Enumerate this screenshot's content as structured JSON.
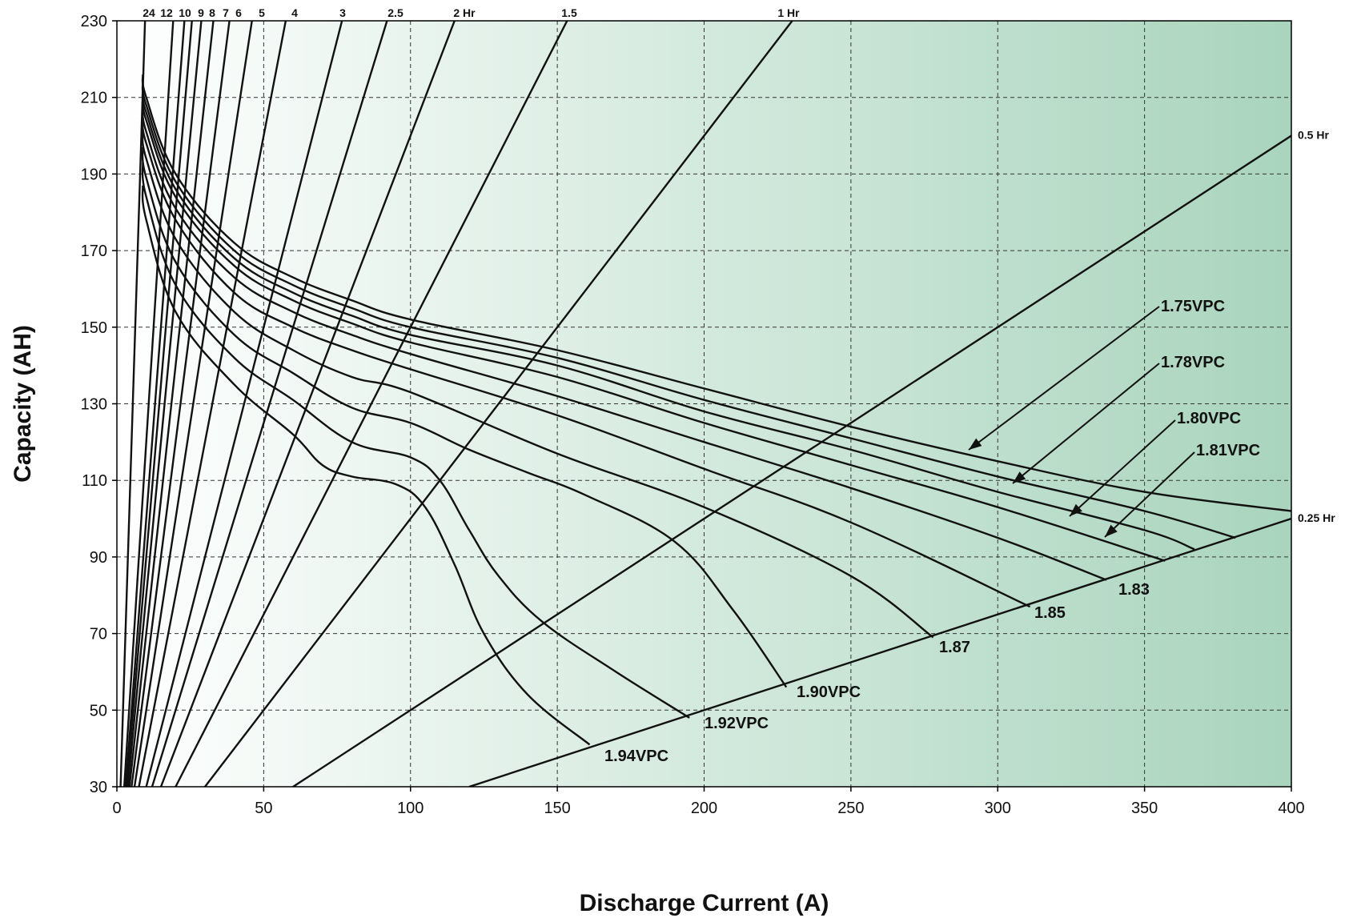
{
  "chart_data": {
    "type": "line",
    "xlabel": "Discharge Current (A)",
    "ylabel": "Capacity (AH)",
    "xlim": [
      0,
      400
    ],
    "ylim": [
      30,
      230
    ],
    "x_ticks": [
      0,
      50,
      100,
      150,
      200,
      250,
      300,
      350,
      400
    ],
    "y_ticks": [
      30,
      50,
      70,
      90,
      110,
      130,
      150,
      170,
      190,
      210,
      230
    ],
    "grid": true,
    "background_gradient": [
      "#ffffff",
      "#a9d4bd"
    ],
    "discharge_time_lines": [
      {
        "label": "24",
        "hours": 24
      },
      {
        "label": "12",
        "hours": 12
      },
      {
        "label": "10",
        "hours": 10
      },
      {
        "label": "9",
        "hours": 9
      },
      {
        "label": "8",
        "hours": 8
      },
      {
        "label": "7",
        "hours": 7
      },
      {
        "label": "6",
        "hours": 6
      },
      {
        "label": "5",
        "hours": 5
      },
      {
        "label": "4",
        "hours": 4
      },
      {
        "label": "3",
        "hours": 3
      },
      {
        "label": "2.5",
        "hours": 2.5
      },
      {
        "label": "2  Hr",
        "hours": 2
      },
      {
        "label": "1.5",
        "hours": 1.5
      },
      {
        "label": "1  Hr",
        "hours": 1
      },
      {
        "label": "0.5  Hr",
        "hours": 0.5
      },
      {
        "label": "0.25  Hr",
        "hours": 0.25
      }
    ],
    "series": [
      {
        "name": "1.75VPC",
        "points": [
          [
            8.8,
            216
          ],
          [
            10,
            210
          ],
          [
            20,
            190
          ],
          [
            40,
            172
          ],
          [
            60,
            163
          ],
          [
            80,
            157
          ],
          [
            100,
            152
          ],
          [
            150,
            144
          ],
          [
            200,
            134
          ],
          [
            250,
            124
          ],
          [
            300,
            115
          ],
          [
            350,
            107
          ],
          [
            400,
            102
          ]
        ]
      },
      {
        "name": "1.78VPC",
        "points": [
          [
            8.8,
            214
          ],
          [
            10,
            208
          ],
          [
            20,
            188
          ],
          [
            40,
            170
          ],
          [
            60,
            161
          ],
          [
            80,
            155
          ],
          [
            100,
            150
          ],
          [
            150,
            142
          ],
          [
            200,
            131
          ],
          [
            250,
            121
          ],
          [
            300,
            111
          ],
          [
            350,
            102
          ],
          [
            381,
            95
          ]
        ]
      },
      {
        "name": "1.80VPC",
        "points": [
          [
            8.8,
            212
          ],
          [
            10,
            206
          ],
          [
            20,
            186
          ],
          [
            40,
            168
          ],
          [
            60,
            159
          ],
          [
            80,
            153
          ],
          [
            100,
            148
          ],
          [
            150,
            140
          ],
          [
            200,
            128
          ],
          [
            250,
            118
          ],
          [
            300,
            107
          ],
          [
            350,
            97
          ],
          [
            367,
            92
          ]
        ]
      },
      {
        "name": "1.81VPC",
        "points": [
          [
            8.8,
            210
          ],
          [
            10,
            204
          ],
          [
            20,
            184
          ],
          [
            40,
            166
          ],
          [
            60,
            157
          ],
          [
            80,
            151
          ],
          [
            100,
            146
          ],
          [
            150,
            137
          ],
          [
            200,
            125
          ],
          [
            250,
            114
          ],
          [
            300,
            103
          ],
          [
            357,
            89
          ]
        ]
      },
      {
        "name": "1.83",
        "points": [
          [
            8.8,
            208
          ],
          [
            10,
            201
          ],
          [
            20,
            181
          ],
          [
            40,
            163
          ],
          [
            60,
            154
          ],
          [
            80,
            148
          ],
          [
            100,
            143
          ],
          [
            150,
            132
          ],
          [
            200,
            120
          ],
          [
            250,
            108
          ],
          [
            300,
            95
          ],
          [
            337,
            84
          ]
        ]
      },
      {
        "name": "1.85",
        "points": [
          [
            8.8,
            205
          ],
          [
            10,
            198
          ],
          [
            20,
            178
          ],
          [
            40,
            159
          ],
          [
            60,
            150
          ],
          [
            80,
            144
          ],
          [
            100,
            139
          ],
          [
            150,
            127
          ],
          [
            200,
            113
          ],
          [
            250,
            99
          ],
          [
            311,
            77
          ]
        ]
      },
      {
        "name": "1.87",
        "points": [
          [
            8.8,
            201
          ],
          [
            10,
            194
          ],
          [
            20,
            173
          ],
          [
            40,
            154
          ],
          [
            60,
            144
          ],
          [
            80,
            137
          ],
          [
            100,
            133
          ],
          [
            150,
            117
          ],
          [
            200,
            103
          ],
          [
            250,
            85
          ],
          [
            278,
            69
          ]
        ]
      },
      {
        "name": "1.90VPC",
        "points": [
          [
            8.8,
            197
          ],
          [
            10,
            189
          ],
          [
            20,
            167
          ],
          [
            40,
            148
          ],
          [
            60,
            138
          ],
          [
            80,
            129
          ],
          [
            100,
            125
          ],
          [
            120,
            118
          ],
          [
            140,
            112
          ],
          [
            160,
            106
          ],
          [
            190,
            94
          ],
          [
            210,
            76
          ],
          [
            228,
            56
          ]
        ]
      },
      {
        "name": "1.92VPC",
        "points": [
          [
            8.8,
            193
          ],
          [
            10,
            184
          ],
          [
            20,
            161
          ],
          [
            40,
            142
          ],
          [
            60,
            131
          ],
          [
            80,
            120
          ],
          [
            100,
            116
          ],
          [
            110,
            110
          ],
          [
            120,
            97
          ],
          [
            130,
            85
          ],
          [
            145,
            73
          ],
          [
            170,
            60
          ],
          [
            195,
            48
          ]
        ]
      },
      {
        "name": "1.94VPC",
        "points": [
          [
            8.8,
            187
          ],
          [
            10,
            178
          ],
          [
            20,
            154
          ],
          [
            40,
            135
          ],
          [
            60,
            122
          ],
          [
            70,
            114
          ],
          [
            80,
            111
          ],
          [
            95,
            109
          ],
          [
            105,
            103
          ],
          [
            115,
            88
          ],
          [
            125,
            70
          ],
          [
            140,
            54
          ],
          [
            161,
            41
          ]
        ]
      }
    ],
    "annotations": [
      {
        "text": "1.75VPC",
        "arrow": true
      },
      {
        "text": "1.78VPC",
        "arrow": true
      },
      {
        "text": "1.80VPC",
        "arrow": true
      },
      {
        "text": "1.81VPC",
        "arrow": true
      },
      {
        "text": "1.83",
        "arrow": false
      },
      {
        "text": "1.85",
        "arrow": false
      },
      {
        "text": "1.87",
        "arrow": false
      },
      {
        "text": "1.90VPC",
        "arrow": false
      },
      {
        "text": "1.92VPC",
        "arrow": false
      },
      {
        "text": "1.94VPC",
        "arrow": false
      }
    ]
  }
}
